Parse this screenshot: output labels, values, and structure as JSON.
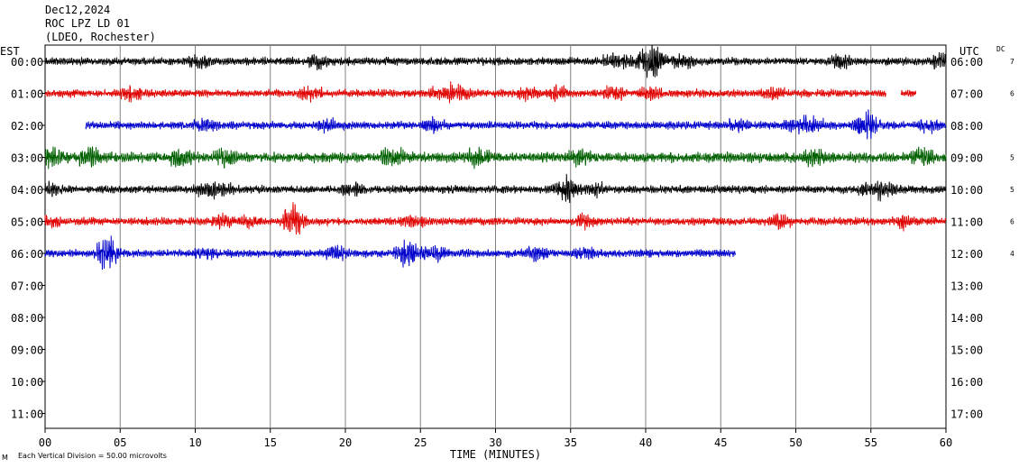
{
  "header": {
    "date": "Dec12,2024",
    "station": "ROC LPZ LD 01",
    "network": "(LDEO, Rochester)"
  },
  "footer": {
    "mark": "M",
    "scale_note": "Each Vertical Division =   50.00 microvolts"
  },
  "chart_data": {
    "type": "line",
    "title": "",
    "xlabel": "TIME (MINUTES)",
    "ylabel_left": "EST",
    "ylabel_right": "UTC",
    "dc_label": "DC",
    "xlim": [
      0,
      60
    ],
    "x_ticks": [
      "00",
      "05",
      "10",
      "15",
      "20",
      "25",
      "30",
      "35",
      "40",
      "45",
      "50",
      "55",
      "60"
    ],
    "grid": "vertical lines every 5 minutes",
    "rows": [
      {
        "est": "00:00",
        "utc": "06:00",
        "dc": "7",
        "color": "#000000",
        "start": 0,
        "end": 60,
        "amplitude": "low"
      },
      {
        "est": "01:00",
        "utc": "07:00",
        "dc": "6",
        "color": "#e00000",
        "start": 0,
        "end": 58,
        "amplitude": "low",
        "gaps": [
          [
            56,
            57
          ]
        ]
      },
      {
        "est": "02:00",
        "utc": "08:00",
        "dc": "",
        "color": "#0000cc",
        "start": 2.7,
        "end": 60,
        "amplitude": "low"
      },
      {
        "est": "03:00",
        "utc": "09:00",
        "dc": "5",
        "color": "#006000",
        "start": 0,
        "end": 60,
        "amplitude": "moderate"
      },
      {
        "est": "04:00",
        "utc": "10:00",
        "dc": "5",
        "color": "#000000",
        "start": 0,
        "end": 60,
        "amplitude": "low"
      },
      {
        "est": "05:00",
        "utc": "11:00",
        "dc": "6",
        "color": "#e00000",
        "start": 0,
        "end": 60,
        "amplitude": "low"
      },
      {
        "est": "06:00",
        "utc": "12:00",
        "dc": "4",
        "color": "#0000cc",
        "start": 0,
        "end": 46,
        "amplitude": "low"
      },
      {
        "est": "07:00",
        "utc": "13:00",
        "dc": "",
        "color": "#000000",
        "start": null,
        "end": null
      },
      {
        "est": "08:00",
        "utc": "14:00",
        "dc": "",
        "color": "#e00000",
        "start": null,
        "end": null
      },
      {
        "est": "09:00",
        "utc": "15:00",
        "dc": "",
        "color": "#0000cc",
        "start": null,
        "end": null
      },
      {
        "est": "10:00",
        "utc": "16:00",
        "dc": "",
        "color": "#006000",
        "start": null,
        "end": null
      },
      {
        "est": "11:00",
        "utc": "17:00",
        "dc": "",
        "color": "#000000",
        "start": null,
        "end": null
      }
    ]
  }
}
